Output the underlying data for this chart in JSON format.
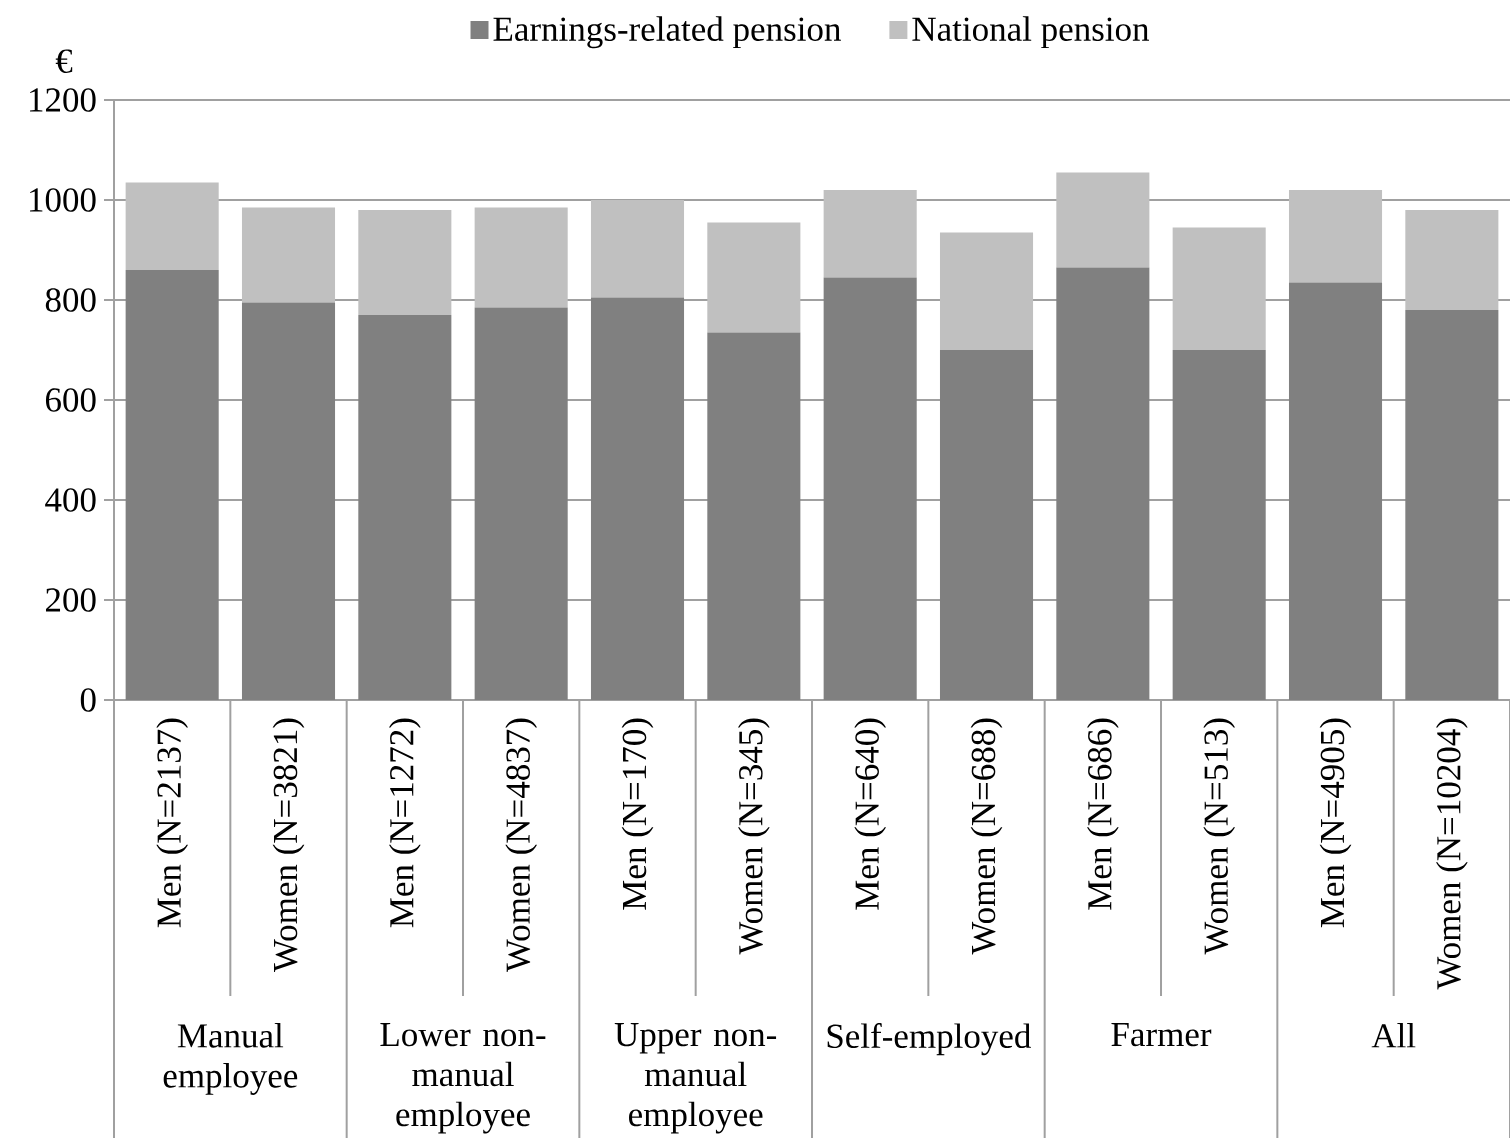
{
  "chart_data": {
    "type": "bar",
    "stacked": true,
    "ylabel": "€",
    "categories": [
      "Men (N=2137)",
      "Women (N=3821)",
      "Men (N=1272)",
      "Women (N=4837)",
      "Men (N=170)",
      "Women (N=345)",
      "Men (N=640)",
      "Women (N=688)",
      "Men (N=686)",
      "Women (N=513)",
      "Men (N=4905)",
      "Women (N=10204)"
    ],
    "series": [
      {
        "name": "Earnings-related pension",
        "color": "#808080",
        "values": [
          860,
          795,
          770,
          785,
          805,
          735,
          845,
          700,
          865,
          700,
          835,
          780
        ]
      },
      {
        "name": "National pension",
        "color": "#c0c0c0",
        "values": [
          175,
          190,
          210,
          200,
          195,
          220,
          175,
          235,
          190,
          245,
          185,
          200
        ]
      }
    ],
    "ylim": [
      0,
      1200
    ],
    "yticks": [
      0,
      200,
      400,
      600,
      800,
      1000,
      1200
    ],
    "grid": "y",
    "legend": "top",
    "annotations": [
      "Manual employee",
      "Lower non-manual employee",
      "Upper non-manual employee",
      "Self-employed",
      "Farmer",
      "All"
    ]
  }
}
